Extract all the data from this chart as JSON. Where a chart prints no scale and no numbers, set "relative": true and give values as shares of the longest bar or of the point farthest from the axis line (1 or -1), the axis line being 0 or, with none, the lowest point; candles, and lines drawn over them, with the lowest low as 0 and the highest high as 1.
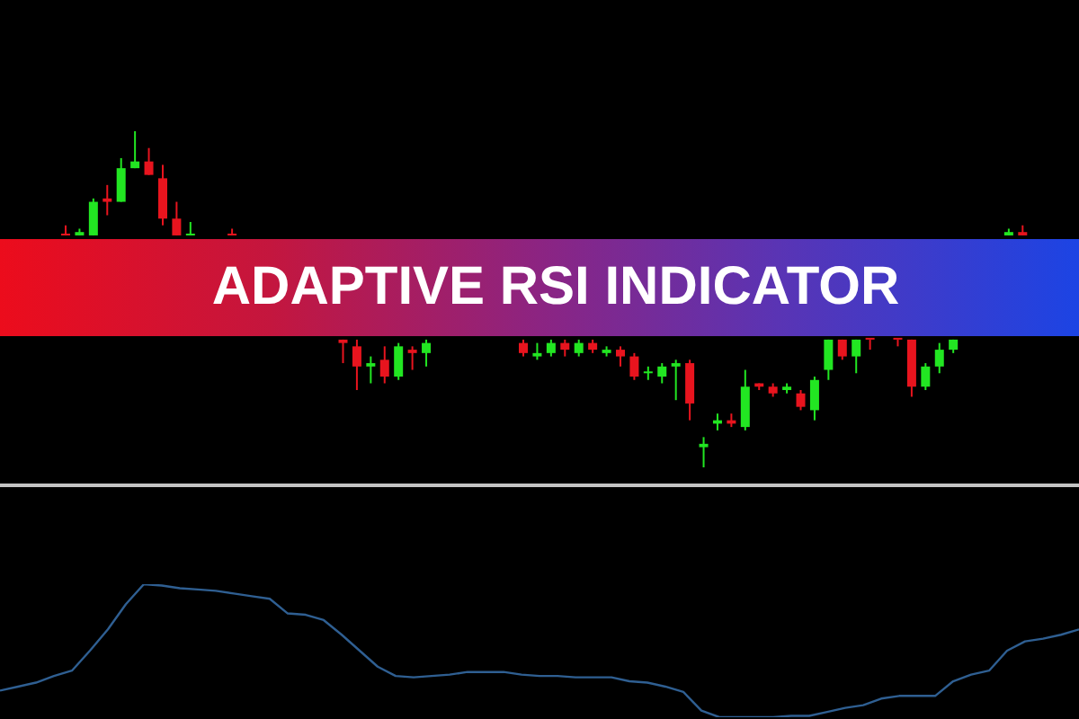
{
  "chart_data": [
    {
      "type": "candlestick",
      "title": "ADAPTIVE RSI INDICATOR",
      "relative": true,
      "categories": [
        null,
        null,
        null,
        null,
        null,
        null,
        null,
        null,
        null,
        null,
        null,
        null,
        null,
        null,
        null,
        null,
        null,
        null,
        null,
        null,
        null,
        null,
        null,
        null,
        null,
        null,
        null,
        null,
        null,
        null,
        null,
        null,
        null,
        null,
        null,
        null,
        null,
        null,
        null,
        null,
        null,
        null,
        null,
        null,
        null,
        null,
        null,
        null,
        null,
        null,
        null,
        null,
        null,
        null,
        null,
        null,
        null,
        null,
        null,
        null,
        null,
        null,
        null,
        null,
        null,
        null,
        null,
        null,
        null,
        null,
        null,
        null,
        null
      ],
      "ohlc": [
        [
          0.69,
          0.72,
          0.69,
          0.69
        ],
        [
          0.69,
          0.71,
          0.69,
          0.7
        ],
        [
          0.69,
          0.8,
          0.69,
          0.79
        ],
        [
          0.8,
          0.84,
          0.75,
          0.79
        ],
        [
          0.79,
          0.92,
          0.79,
          0.89
        ],
        [
          0.89,
          1,
          0.89,
          0.91
        ],
        [
          0.91,
          0.95,
          0.87,
          0.87
        ],
        [
          0.86,
          0.9,
          0.72,
          0.74
        ],
        [
          0.74,
          0.79,
          0.69,
          0.69
        ],
        [
          0.69,
          0.73,
          0.69,
          0.69
        ],
        null,
        null,
        [
          0.69,
          0.71,
          0.69,
          0.69
        ],
        null,
        null,
        null,
        null,
        null,
        null,
        null,
        [
          0.38,
          0.38,
          0.31,
          0.37
        ],
        [
          0.36,
          0.38,
          0.23,
          0.3
        ],
        [
          0.3,
          0.33,
          0.25,
          0.31
        ],
        [
          0.32,
          0.36,
          0.25,
          0.27
        ],
        [
          0.27,
          0.37,
          0.26,
          0.36
        ],
        [
          0.35,
          0.36,
          0.29,
          0.34
        ],
        [
          0.34,
          0.38,
          0.3,
          0.37
        ],
        null,
        null,
        null,
        null,
        null,
        null,
        [
          0.37,
          0.38,
          0.33,
          0.34
        ],
        [
          0.33,
          0.37,
          0.32,
          0.34
        ],
        [
          0.34,
          0.38,
          0.33,
          0.37
        ],
        [
          0.37,
          0.38,
          0.33,
          0.35
        ],
        [
          0.34,
          0.38,
          0.33,
          0.37
        ],
        [
          0.37,
          0.38,
          0.34,
          0.35
        ],
        [
          0.34,
          0.36,
          0.33,
          0.35
        ],
        [
          0.35,
          0.36,
          0.3,
          0.33
        ],
        [
          0.33,
          0.34,
          0.26,
          0.27
        ],
        [
          0.28,
          0.3,
          0.26,
          0.28
        ],
        [
          0.27,
          0.31,
          0.25,
          0.3
        ],
        [
          0.3,
          0.32,
          0.2,
          0.31
        ],
        [
          0.31,
          0.32,
          0.14,
          0.19
        ],
        [
          0.06,
          0.09,
          0,
          0.07
        ],
        [
          0.13,
          0.16,
          0.11,
          0.14
        ],
        [
          0.14,
          0.16,
          0.12,
          0.13
        ],
        [
          0.12,
          0.29,
          0.11,
          0.24
        ],
        [
          0.25,
          0.25,
          0.23,
          0.24
        ],
        [
          0.24,
          0.25,
          0.21,
          0.22
        ],
        [
          0.23,
          0.25,
          0.22,
          0.24
        ],
        [
          0.22,
          0.23,
          0.17,
          0.18
        ],
        [
          0.17,
          0.27,
          0.14,
          0.26
        ],
        [
          0.29,
          0.38,
          0.26,
          0.38
        ],
        [
          0.38,
          0.38,
          0.32,
          0.33
        ],
        [
          0.33,
          0.38,
          0.28,
          0.38
        ],
        [
          0.38,
          0.38,
          0.35,
          0.38
        ],
        null,
        [
          0.38,
          0.38,
          0.36,
          0.38
        ],
        [
          0.38,
          0.38,
          0.21,
          0.24
        ],
        [
          0.24,
          0.31,
          0.23,
          0.3
        ],
        [
          0.3,
          0.37,
          0.28,
          0.35
        ],
        [
          0.35,
          0.38,
          0.34,
          0.38
        ],
        null,
        null,
        null,
        [
          0.69,
          0.71,
          0.69,
          0.7
        ],
        [
          0.7,
          0.72,
          0.69,
          0.69
        ],
        null,
        null,
        null
      ],
      "colors": [
        "#e8141e",
        "#22e622",
        "#22e622",
        "#e8141e",
        "#22e622",
        "#22e622",
        "#e8141e",
        "#e8141e",
        "#e8141e",
        "#22e622",
        null,
        null,
        "#e8141e",
        null,
        null,
        null,
        null,
        null,
        null,
        null,
        "#e8141e",
        "#e8141e",
        "#22e622",
        "#e8141e",
        "#22e622",
        "#e8141e",
        "#22e622",
        null,
        null,
        null,
        null,
        null,
        null,
        "#e8141e",
        "#22e622",
        "#22e622",
        "#e8141e",
        "#22e622",
        "#e8141e",
        "#22e622",
        "#e8141e",
        "#e8141e",
        "#22e622",
        "#22e622",
        "#22e622",
        "#e8141e",
        "#22e622",
        "#22e622",
        "#e8141e",
        "#22e622",
        "#e8141e",
        "#e8141e",
        "#22e622",
        "#e8141e",
        "#22e622",
        "#22e622",
        "#e8141e",
        "#22e622",
        "#e8141e",
        null,
        "#e8141e",
        "#e8141e",
        "#22e622",
        "#22e622",
        "#22e622",
        null,
        null,
        null,
        "#22e622",
        "#e8141e",
        null,
        null,
        null
      ]
    },
    {
      "type": "line",
      "relative": true,
      "color": "#2f5f92",
      "categories": [
        null,
        null,
        null,
        null,
        null,
        null,
        null,
        null,
        null,
        null,
        null,
        null,
        null,
        null,
        null,
        null,
        null,
        null,
        null,
        null,
        null,
        null,
        null,
        null,
        null,
        null,
        null,
        null,
        null,
        null,
        null,
        null,
        null,
        null,
        null,
        null,
        null,
        null,
        null,
        null,
        null,
        null,
        null,
        null,
        null,
        null,
        null,
        null,
        null,
        null,
        null,
        null,
        null,
        null,
        null,
        null,
        null,
        null,
        null,
        null,
        null
      ],
      "values": [
        0.2,
        0.23,
        0.26,
        0.31,
        0.35,
        0.5,
        0.66,
        0.85,
        1,
        0.99,
        0.97,
        0.96,
        0.95,
        0.93,
        0.91,
        0.89,
        0.78,
        0.77,
        0.73,
        0.62,
        0.5,
        0.38,
        0.31,
        0.3,
        0.31,
        0.32,
        0.34,
        0.34,
        0.34,
        0.32,
        0.31,
        0.31,
        0.3,
        0.3,
        0.3,
        0.27,
        0.26,
        0.23,
        0.19,
        0.05,
        0,
        0,
        0,
        0,
        0.01,
        0.01,
        0.04,
        0.07,
        0.09,
        0.14,
        0.16,
        0.16,
        0.16,
        0.27,
        0.32,
        0.35,
        0.5,
        0.57,
        0.59,
        0.62,
        0.66
      ]
    }
  ]
}
